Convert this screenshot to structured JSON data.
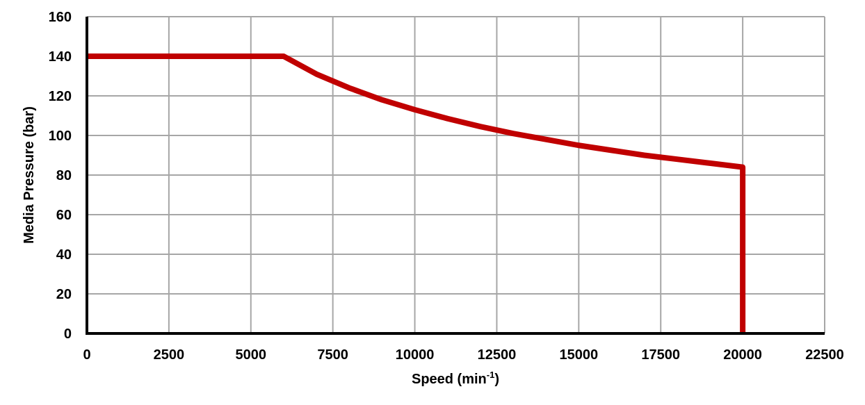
{
  "chart_data": {
    "type": "line",
    "title": "",
    "xlabel": "Speed (min⁻¹)",
    "xlabel_base": "Speed (min",
    "xlabel_sup": "-1",
    "xlabel_close": ")",
    "ylabel": "Media Pressure (bar)",
    "xlim": [
      0,
      22500
    ],
    "ylim": [
      0,
      160
    ],
    "xticks": [
      0,
      2500,
      5000,
      7500,
      10000,
      12500,
      15000,
      17500,
      20000,
      22500
    ],
    "yticks": [
      0,
      20,
      40,
      60,
      80,
      100,
      120,
      140,
      160
    ],
    "grid": true,
    "legend": null,
    "series": [
      {
        "name": "Media Pressure",
        "color": "#C00000",
        "x": [
          0,
          6000,
          7000,
          8000,
          9000,
          10000,
          11000,
          12000,
          13000,
          14000,
          15000,
          16000,
          17000,
          18000,
          19000,
          20000,
          20000
        ],
        "y": [
          140,
          140,
          131,
          124,
          118,
          113,
          108.5,
          104.5,
          101,
          98,
          95,
          92.5,
          90,
          88,
          86,
          84,
          0
        ]
      }
    ]
  },
  "colors": {
    "line": "#C00000",
    "grid": "#A6A6A6",
    "axis": "#000000"
  }
}
